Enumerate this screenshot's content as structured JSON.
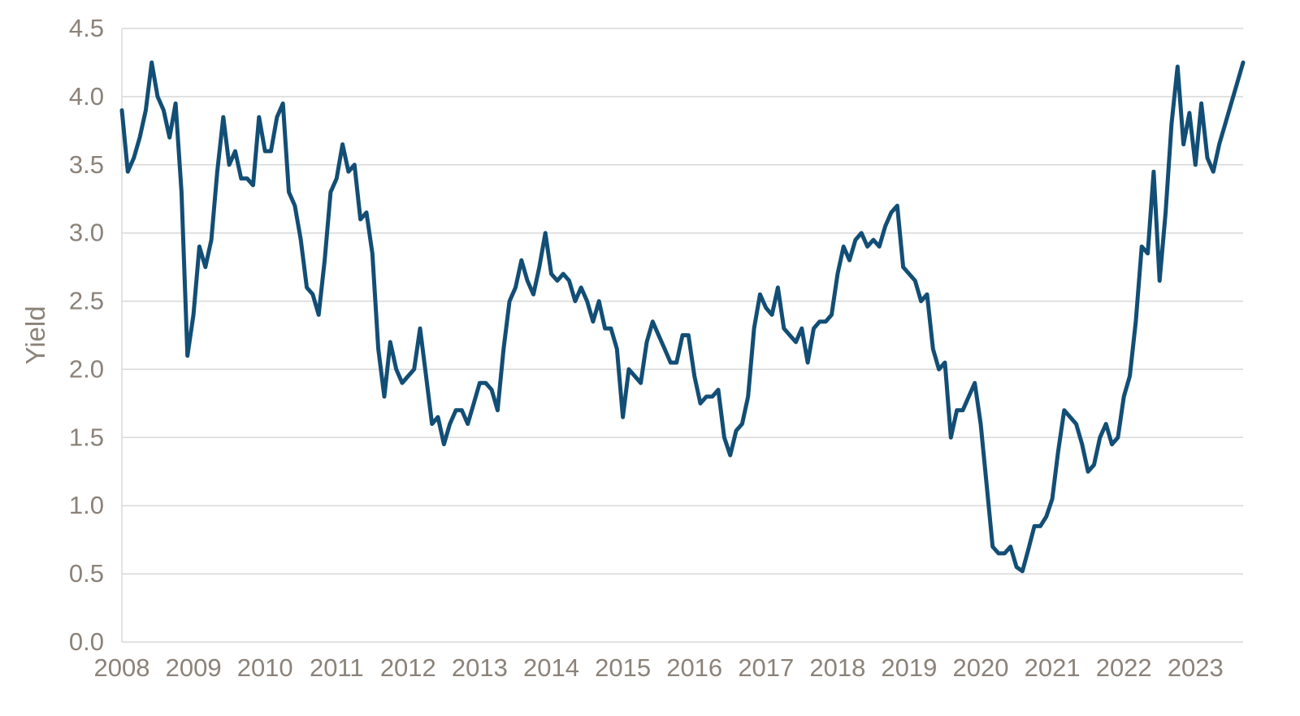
{
  "page": {
    "background": "#ffffff"
  },
  "chart_data": {
    "type": "line",
    "title": "",
    "xlabel": "",
    "ylabel": "Yield",
    "legend": "none",
    "grid": "horizontal",
    "grid_color": "#D8D8D8",
    "tick_label_color": "#8B8279",
    "axis_title_color": "#8B8279",
    "line_width": 5,
    "xlim": [
      2008,
      2023.667
    ],
    "ylim": [
      0,
      4.5
    ],
    "x_ticks": [
      2008,
      2009,
      2010,
      2011,
      2012,
      2013,
      2014,
      2015,
      2016,
      2017,
      2018,
      2019,
      2020,
      2021,
      2022,
      2023
    ],
    "y_ticks": [
      0.0,
      0.5,
      1.0,
      1.5,
      2.0,
      2.5,
      3.0,
      3.5,
      4.0,
      4.5
    ],
    "series": [
      {
        "name": "Yield",
        "color": "#124E75",
        "x_start": 2008.0,
        "x_step": 0.0833333,
        "x_unit": "year (monthly points)",
        "values": [
          3.9,
          3.45,
          3.55,
          3.7,
          3.9,
          4.25,
          4.0,
          3.9,
          3.7,
          3.95,
          3.3,
          2.1,
          2.4,
          2.9,
          2.75,
          2.95,
          3.45,
          3.85,
          3.5,
          3.6,
          3.4,
          3.4,
          3.35,
          3.85,
          3.6,
          3.6,
          3.85,
          3.95,
          3.3,
          3.2,
          2.95,
          2.6,
          2.55,
          2.4,
          2.8,
          3.3,
          3.4,
          3.65,
          3.45,
          3.5,
          3.1,
          3.15,
          2.85,
          2.15,
          1.8,
          2.2,
          2.0,
          1.9,
          1.95,
          2.0,
          2.3,
          1.95,
          1.6,
          1.65,
          1.45,
          1.6,
          1.7,
          1.7,
          1.6,
          1.75,
          1.9,
          1.9,
          1.85,
          1.7,
          2.15,
          2.5,
          2.6,
          2.8,
          2.65,
          2.55,
          2.75,
          3.0,
          2.7,
          2.65,
          2.7,
          2.65,
          2.5,
          2.6,
          2.5,
          2.35,
          2.5,
          2.3,
          2.3,
          2.15,
          1.65,
          2.0,
          1.95,
          1.9,
          2.2,
          2.35,
          2.25,
          2.15,
          2.05,
          2.05,
          2.25,
          2.25,
          1.95,
          1.75,
          1.8,
          1.8,
          1.85,
          1.5,
          1.37,
          1.55,
          1.6,
          1.8,
          2.3,
          2.55,
          2.45,
          2.4,
          2.6,
          2.3,
          2.25,
          2.2,
          2.3,
          2.05,
          2.3,
          2.35,
          2.35,
          2.4,
          2.7,
          2.9,
          2.8,
          2.95,
          3.0,
          2.9,
          2.95,
          2.9,
          3.05,
          3.15,
          3.2,
          2.75,
          2.7,
          2.65,
          2.5,
          2.55,
          2.15,
          2.0,
          2.05,
          1.5,
          1.7,
          1.7,
          1.8,
          1.9,
          1.6,
          1.15,
          0.7,
          0.65,
          0.65,
          0.7,
          0.55,
          0.52,
          0.68,
          0.85,
          0.85,
          0.92,
          1.05,
          1.4,
          1.7,
          1.65,
          1.6,
          1.45,
          1.25,
          1.3,
          1.5,
          1.6,
          1.45,
          1.5,
          1.8,
          1.95,
          2.35,
          2.9,
          2.85,
          3.45,
          2.65,
          3.15,
          3.8,
          4.22,
          3.65,
          3.88,
          3.5,
          3.95,
          3.55,
          3.45,
          3.65,
          3.8,
          3.95,
          4.1,
          4.25
        ]
      }
    ]
  }
}
